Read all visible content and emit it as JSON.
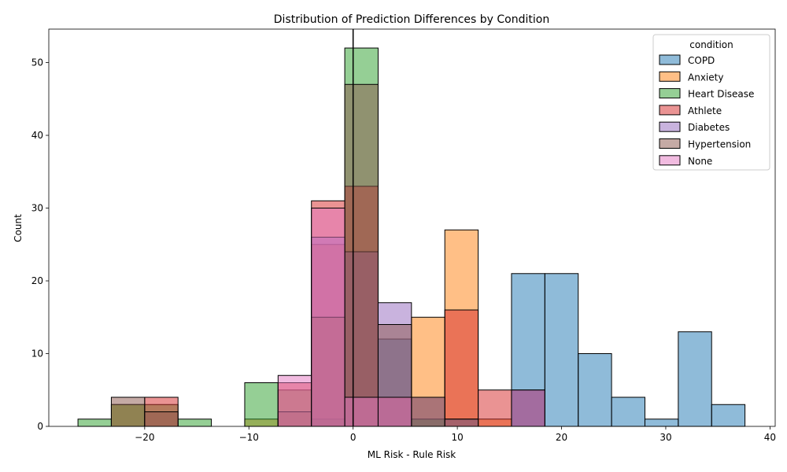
{
  "chart_data": {
    "type": "bar",
    "title": "Distribution of Prediction Differences by Condition",
    "xlabel": "ML Risk - Rule Risk",
    "ylabel": "Count",
    "xlim": [
      -29.2,
      40.5
    ],
    "ylim": [
      0,
      54.6
    ],
    "xticks": [
      -20,
      -10,
      0,
      10,
      20,
      30,
      40
    ],
    "yticks": [
      0,
      10,
      20,
      30,
      40,
      50
    ],
    "vline_x": 0,
    "bin_width": 3.2,
    "legend": {
      "title": "condition",
      "placement": "top-right"
    },
    "series": [
      {
        "name": "COPD",
        "color": "#1f77b4",
        "bins": [
          [
            2.4,
            12
          ],
          [
            5.6,
            1
          ],
          [
            15.2,
            21
          ],
          [
            18.4,
            21
          ],
          [
            21.6,
            10
          ],
          [
            24.8,
            4
          ],
          [
            28.0,
            1
          ],
          [
            31.2,
            13
          ],
          [
            34.4,
            3
          ]
        ]
      },
      {
        "name": "Anxiety",
        "color": "#ff7f0e",
        "bins": [
          [
            -23.2,
            3
          ],
          [
            -10.4,
            1
          ],
          [
            -4.0,
            25
          ],
          [
            -0.8,
            24
          ],
          [
            5.6,
            15
          ],
          [
            8.8,
            27
          ],
          [
            12.0,
            1
          ]
        ]
      },
      {
        "name": "Heart Disease",
        "color": "#2ca02c",
        "bins": [
          [
            -26.4,
            1
          ],
          [
            -23.2,
            3
          ],
          [
            -20.0,
            3
          ],
          [
            -16.8,
            1
          ],
          [
            -10.4,
            6
          ],
          [
            -7.2,
            5
          ],
          [
            -4.0,
            1
          ],
          [
            -0.8,
            52
          ],
          [
            2.4,
            4
          ],
          [
            5.6,
            1
          ]
        ]
      },
      {
        "name": "Athlete",
        "color": "#d62728",
        "bins": [
          [
            -20.0,
            4
          ],
          [
            -7.2,
            6
          ],
          [
            -4.0,
            31
          ],
          [
            -0.8,
            33
          ],
          [
            2.4,
            4
          ],
          [
            8.8,
            16
          ],
          [
            12.0,
            5
          ],
          [
            15.2,
            5
          ]
        ]
      },
      {
        "name": "Diabetes",
        "color": "#9467bd",
        "bins": [
          [
            -4.0,
            26
          ],
          [
            -0.8,
            24
          ],
          [
            2.4,
            17
          ],
          [
            5.6,
            4
          ],
          [
            8.8,
            1
          ],
          [
            15.2,
            5
          ]
        ]
      },
      {
        "name": "Hypertension",
        "color": "#8c564b",
        "bins": [
          [
            -23.2,
            4
          ],
          [
            -20.0,
            2
          ],
          [
            -7.2,
            2
          ],
          [
            -4.0,
            15
          ],
          [
            -0.8,
            47
          ],
          [
            2.4,
            14
          ],
          [
            5.6,
            4
          ],
          [
            8.8,
            1
          ]
        ]
      },
      {
        "name": "None",
        "color": "#e377c2",
        "bins": [
          [
            -7.2,
            7
          ],
          [
            -4.0,
            30
          ],
          [
            -0.8,
            4
          ],
          [
            2.4,
            4
          ]
        ]
      }
    ]
  }
}
